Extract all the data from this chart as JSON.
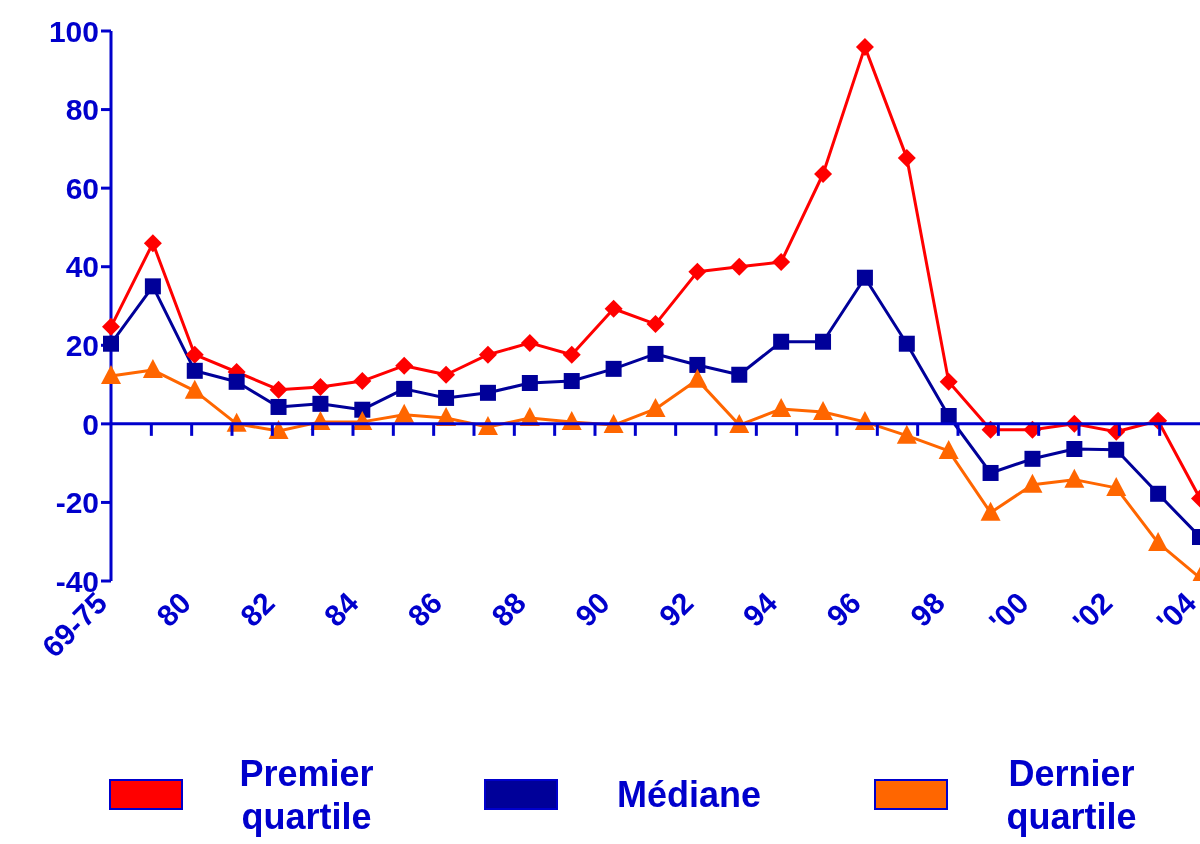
{
  "chart_data": {
    "type": "line",
    "categories": [
      "69-75",
      null,
      "80",
      null,
      "82",
      null,
      "84",
      null,
      "86",
      null,
      "88",
      null,
      "90",
      null,
      "92",
      null,
      "94",
      null,
      "96",
      null,
      "98",
      null,
      "'00",
      null,
      "'02",
      null,
      "'04"
    ],
    "series": [
      {
        "name": "Premier quartile",
        "color": "#ff0000",
        "marker": "diamond",
        "values": [
          24.7,
          46,
          17.6,
          13.2,
          8.7,
          9.4,
          10.9,
          14.8,
          12.5,
          17.6,
          20.6,
          17.6,
          29.3,
          25.4,
          38.7,
          40,
          41.2,
          63.6,
          95.9,
          67.7,
          10.7,
          -1.5,
          -1.5,
          0,
          -2,
          0.8,
          -19
        ]
      },
      {
        "name": "Médiane",
        "color": "#000099",
        "marker": "square",
        "values": [
          20.4,
          35,
          13.5,
          10.7,
          4.3,
          5.1,
          3.6,
          8.9,
          6.6,
          7.9,
          10.4,
          10.9,
          14,
          17.8,
          15,
          12.5,
          20.9,
          20.9,
          37.2,
          20.4,
          2,
          -12.5,
          -8.9,
          -6.4,
          -6.6,
          -17.8,
          -28.8
        ]
      },
      {
        "name": "Dernier quartile",
        "color": "#ff6600",
        "marker": "triangle",
        "values": [
          12.2,
          13.7,
          8.4,
          0,
          -1.8,
          0.5,
          0.5,
          2.3,
          1.5,
          -0.8,
          1.5,
          0.5,
          -0.3,
          3.8,
          11.2,
          -0.3,
          3.8,
          3,
          0.5,
          -3,
          -6.9,
          -22.6,
          -15.5,
          -14.2,
          -16.3,
          -30.3,
          -39.2
        ]
      }
    ],
    "ylim": [
      -40,
      100
    ],
    "yticks": [
      -40,
      -20,
      0,
      20,
      40,
      60,
      80,
      100
    ],
    "ref_lines": [
      {
        "axis": "y",
        "value": 0,
        "color": "#0000cc"
      }
    ],
    "grid": false,
    "legend": "bottom",
    "line_style": "solid"
  }
}
